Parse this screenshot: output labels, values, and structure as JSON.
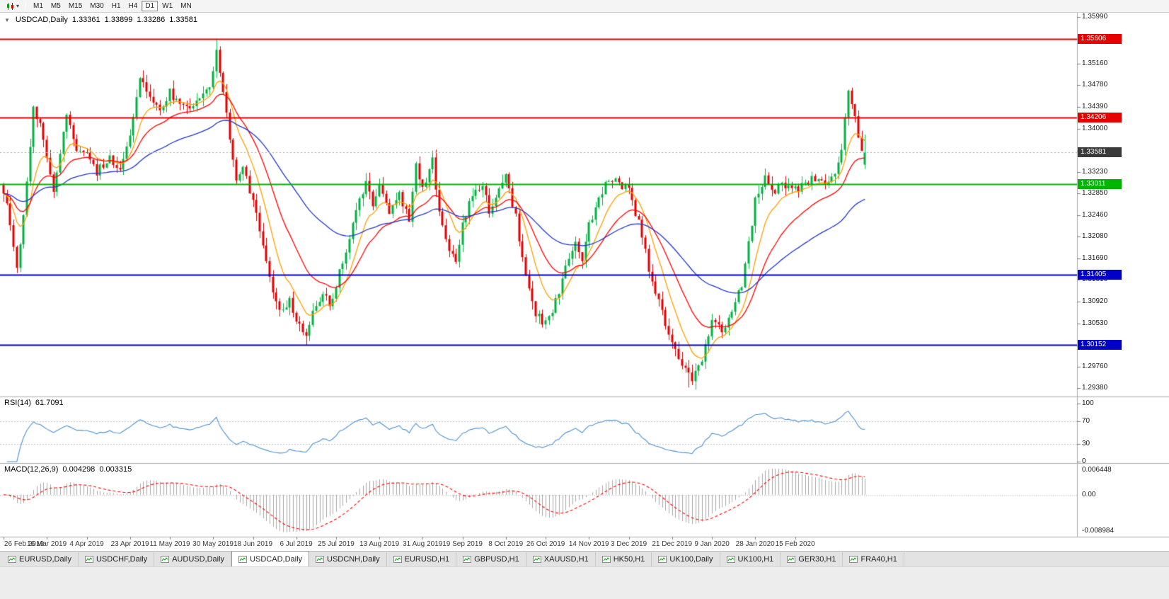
{
  "toolbar": {
    "chart_type_button": {
      "icon": "candlestick-chart-icon",
      "caret": "▾"
    },
    "timeframes": [
      "M1",
      "M5",
      "M15",
      "M30",
      "H1",
      "H4",
      "D1",
      "W1",
      "MN"
    ],
    "active_timeframe": "D1"
  },
  "chart": {
    "header": {
      "collapse_icon": "▼",
      "symbol": "USDCAD,Daily",
      "open": "1.33361",
      "high": "1.33899",
      "low": "1.33286",
      "close": "1.33581"
    },
    "rsi_header": {
      "name": "RSI(14)",
      "value": "61.7091"
    },
    "macd_header": {
      "name": "MACD(12,26,9)",
      "value_main": "0.004298",
      "value_signal": "0.003315"
    }
  },
  "price_scale": {
    "ticks": [
      "1.35990",
      "1.35600",
      "1.35160",
      "1.34780",
      "1.34390",
      "1.34000",
      "1.33610",
      "1.33230",
      "1.32850",
      "1.32460",
      "1.32080",
      "1.31690",
      "1.31310",
      "1.30920",
      "1.30530",
      "1.30140",
      "1.29760",
      "1.29380"
    ],
    "badges": [
      {
        "text": "1.35606",
        "bg": "#E60000"
      },
      {
        "text": "1.34206",
        "bg": "#E60000"
      },
      {
        "text": "1.33581",
        "bg": "#3A3A3A"
      },
      {
        "text": "1.33011",
        "bg": "#00B400"
      },
      {
        "text": "1.31405",
        "bg": "#0000C8"
      },
      {
        "text": "1.30152",
        "bg": "#0000C8"
      }
    ]
  },
  "rsi_scale": {
    "ticks": [
      {
        "v": 100,
        "label": "100"
      },
      {
        "v": 70,
        "label": "70"
      },
      {
        "v": 30,
        "label": "30"
      },
      {
        "v": 0,
        "label": "0"
      }
    ]
  },
  "macd_scale": {
    "ticks": [
      {
        "label": "0.006448"
      },
      {
        "label": "0.00"
      },
      {
        "label": "-0.008984"
      }
    ]
  },
  "date_axis": {
    "labels": [
      {
        "text": "26 Feb 2019",
        "i": 0
      },
      {
        "text": "16 Mar 2019",
        "i": 13
      },
      {
        "text": "4 Apr 2019",
        "i": 25
      },
      {
        "text": "23 Apr 2019",
        "i": 38
      },
      {
        "text": "11 May 2019",
        "i": 50
      },
      {
        "text": "30 May 2019",
        "i": 63
      },
      {
        "text": "18 Jun 2019",
        "i": 75
      },
      {
        "text": "6 Jul 2019",
        "i": 88
      },
      {
        "text": "25 Jul 2019",
        "i": 100
      },
      {
        "text": "13 Aug 2019",
        "i": 113
      },
      {
        "text": "31 Aug 2019",
        "i": 126
      },
      {
        "text": "19 Sep 2019",
        "i": 138
      },
      {
        "text": "8 Oct 2019",
        "i": 151
      },
      {
        "text": "26 Oct 2019",
        "i": 163
      },
      {
        "text": "14 Nov 2019",
        "i": 176
      },
      {
        "text": "3 Dec 2019",
        "i": 188
      },
      {
        "text": "21 Dec 2019",
        "i": 201
      },
      {
        "text": "9 Jan 2020",
        "i": 213
      },
      {
        "text": "28 Jan 2020",
        "i": 226
      },
      {
        "text": "15 Feb 2020",
        "i": 238
      }
    ]
  },
  "tabs": {
    "items": [
      {
        "label": "EURUSD,Daily",
        "active": false
      },
      {
        "label": "USDCHF,Daily",
        "active": false
      },
      {
        "label": "AUDUSD,Daily",
        "active": false
      },
      {
        "label": "USDCAD,Daily",
        "active": true
      },
      {
        "label": "USDCNH,Daily",
        "active": false
      },
      {
        "label": "EURUSD,H1",
        "active": false
      },
      {
        "label": "GBPUSD,H1",
        "active": false
      },
      {
        "label": "XAUUSD,H1",
        "active": false
      },
      {
        "label": "HK50,H1",
        "active": false
      },
      {
        "label": "UK100,Daily",
        "active": false
      },
      {
        "label": "UK100,H1",
        "active": false
      },
      {
        "label": "GER30,H1",
        "active": false
      },
      {
        "label": "FRA40,H1",
        "active": false
      }
    ]
  },
  "chart_data": {
    "type": "candlestick",
    "symbol": "USDCAD",
    "timeframe": "Daily",
    "title": "USDCAD,Daily",
    "last_ohlc": {
      "open": 1.33361,
      "high": 1.33899,
      "low": 1.33286,
      "close": 1.33581
    },
    "n_candles": 260,
    "price_axis_range": {
      "top": 1.3607,
      "bottom": 1.2928
    },
    "levels": [
      {
        "name": "resistance-upper",
        "price": 1.35606,
        "color": "#E60000",
        "style": "solid"
      },
      {
        "name": "resistance-lower",
        "price": 1.34206,
        "color": "#E60000",
        "style": "solid"
      },
      {
        "name": "current-price-line",
        "price": 1.33581,
        "color": "#A8A8A8",
        "style": "dotted"
      },
      {
        "name": "support-green",
        "price": 1.33011,
        "color": "#00B400",
        "style": "solid"
      },
      {
        "name": "support-blue-upper",
        "price": 1.31405,
        "color": "#0000C8",
        "style": "solid"
      },
      {
        "name": "support-blue-lower",
        "price": 1.30152,
        "color": "#0000C8",
        "style": "solid"
      }
    ],
    "moving_averages": [
      {
        "period": 9,
        "color": "#FFA000"
      },
      {
        "period": 21,
        "color": "#FF0000"
      },
      {
        "period": 55,
        "color": "#2438C8"
      }
    ],
    "colors": {
      "up": "#00B140",
      "down": "#E00000",
      "rsi": "#4A90D2",
      "macd_hist": "#A6A6A6",
      "macd_signal": "#FF0000"
    },
    "rsi": {
      "period": 14,
      "last": 61.7091,
      "levels": [
        70,
        30
      ]
    },
    "macd": {
      "fast": 12,
      "slow": 26,
      "signal": 9,
      "last_main": 0.004298,
      "last_signal": 0.003315
    },
    "waypoints": [
      [
        0,
        1.329
      ],
      [
        2,
        1.3235
      ],
      [
        4,
        1.315
      ],
      [
        7,
        1.3305
      ],
      [
        9,
        1.344
      ],
      [
        12,
        1.3385
      ],
      [
        15,
        1.329
      ],
      [
        19,
        1.343
      ],
      [
        22,
        1.3355
      ],
      [
        25,
        1.3358
      ],
      [
        28,
        1.3322
      ],
      [
        32,
        1.3352
      ],
      [
        35,
        1.3322
      ],
      [
        38,
        1.339
      ],
      [
        41,
        1.349
      ],
      [
        44,
        1.3452
      ],
      [
        47,
        1.3432
      ],
      [
        50,
        1.3468
      ],
      [
        53,
        1.3442
      ],
      [
        56,
        1.343
      ],
      [
        59,
        1.346
      ],
      [
        62,
        1.3482
      ],
      [
        64,
        1.3538
      ],
      [
        66,
        1.347
      ],
      [
        68,
        1.3382
      ],
      [
        70,
        1.3302
      ],
      [
        72,
        1.333
      ],
      [
        75,
        1.3272
      ],
      [
        78,
        1.32
      ],
      [
        81,
        1.3112
      ],
      [
        84,
        1.3072
      ],
      [
        86,
        1.3096
      ],
      [
        88,
        1.3062
      ],
      [
        91,
        1.3032
      ],
      [
        93,
        1.3072
      ],
      [
        96,
        1.3112
      ],
      [
        98,
        1.3082
      ],
      [
        100,
        1.3122
      ],
      [
        103,
        1.3182
      ],
      [
        106,
        1.3252
      ],
      [
        109,
        1.3302
      ],
      [
        111,
        1.3262
      ],
      [
        113,
        1.3302
      ],
      [
        116,
        1.3252
      ],
      [
        119,
        1.3282
      ],
      [
        122,
        1.3242
      ],
      [
        124,
        1.3332
      ],
      [
        126,
        1.3292
      ],
      [
        129,
        1.3342
      ],
      [
        131,
        1.3252
      ],
      [
        134,
        1.3182
      ],
      [
        136,
        1.3162
      ],
      [
        138,
        1.3232
      ],
      [
        141,
        1.3282
      ],
      [
        144,
        1.3302
      ],
      [
        146,
        1.3252
      ],
      [
        149,
        1.3292
      ],
      [
        151,
        1.3312
      ],
      [
        154,
        1.3242
      ],
      [
        157,
        1.3132
      ],
      [
        160,
        1.3072
      ],
      [
        163,
        1.3052
      ],
      [
        166,
        1.3092
      ],
      [
        169,
        1.3152
      ],
      [
        172,
        1.3202
      ],
      [
        174,
        1.3172
      ],
      [
        176,
        1.3232
      ],
      [
        179,
        1.3272
      ],
      [
        182,
        1.3312
      ],
      [
        185,
        1.3302
      ],
      [
        188,
        1.3292
      ],
      [
        191,
        1.3232
      ],
      [
        194,
        1.3152
      ],
      [
        197,
        1.3092
      ],
      [
        199,
        1.3052
      ],
      [
        201,
        1.3022
      ],
      [
        204,
        1.2982
      ],
      [
        207,
        1.2952
      ],
      [
        209,
        1.2972
      ],
      [
        211,
        1.3012
      ],
      [
        213,
        1.3062
      ],
      [
        216,
        1.3042
      ],
      [
        219,
        1.3072
      ],
      [
        222,
        1.3122
      ],
      [
        224,
        1.3192
      ],
      [
        226,
        1.3272
      ],
      [
        229,
        1.3312
      ],
      [
        232,
        1.3292
      ],
      [
        235,
        1.3302
      ],
      [
        238,
        1.3292
      ],
      [
        241,
        1.3302
      ],
      [
        244,
        1.3312
      ],
      [
        247,
        1.3302
      ],
      [
        250,
        1.3322
      ],
      [
        252,
        1.3362
      ],
      [
        254,
        1.3465
      ],
      [
        256,
        1.342
      ],
      [
        257,
        1.3385
      ],
      [
        258,
        1.336
      ],
      [
        259,
        1.33581
      ]
    ],
    "overrides": [
      {
        "i": 4,
        "l": 1.3143
      },
      {
        "i": 64,
        "h": 1.35606
      },
      {
        "i": 91,
        "l": 1.30152
      },
      {
        "i": 206,
        "l": 1.2939
      },
      {
        "i": 254,
        "h": 1.347
      },
      {
        "i": 259,
        "o": 1.33361,
        "h": 1.33899,
        "l": 1.33286,
        "c": 1.33581
      }
    ]
  }
}
